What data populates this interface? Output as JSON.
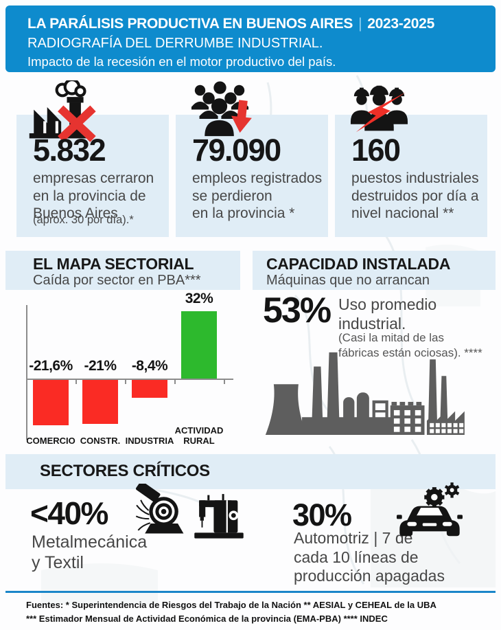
{
  "colors": {
    "header_blue": "#0e8bcd",
    "panel_blue": "#e0edf6",
    "accent_line_blue": "#1b86c9",
    "negative_red": "#fa2b24",
    "positive_green": "#2db92d",
    "icon_red": "#e63430",
    "silhouette_gray": "#5e5e5e",
    "text_dark": "#141414",
    "text_gray": "#474747"
  },
  "header": {
    "title": "LA PARÁLISIS PRODUCTIVA EN BUENOS AIRES",
    "separator": "|",
    "period": "2023-2025",
    "subtitle": "RADIOGRAFÍA DEL DERRUMBE INDUSTRIAL.",
    "tagline": "Impacto de la recesión en el motor productivo del país."
  },
  "stats": [
    {
      "icon": "closed-factory-icon",
      "value": "5.832",
      "description": "empresas cerraron\nen la provincia de\nBuenos Aires",
      "note": "(aprox. 30 por día).*"
    },
    {
      "icon": "jobs-lost-icon",
      "value": "79.090",
      "description": "empleos registrados\nse perdieron\nen la provincia *"
    },
    {
      "icon": "industrial-workers-icon",
      "value": "160",
      "description": "puestos industriales\ndestruidos por día a\nnivel nacional **"
    }
  ],
  "sector_map": {
    "title": "EL MAPA SECTORIAL",
    "subtitle": "Caída por sector en PBA***"
  },
  "chart_data": {
    "type": "bar",
    "title": "EL MAPA SECTORIAL",
    "subtitle": "Caída por sector en PBA***",
    "categories": [
      "COMERCIO",
      "CONSTR.",
      "INDUSTRIA",
      "ACTIVIDAD RURAL"
    ],
    "values": [
      -21.6,
      -21,
      -8.4,
      32
    ],
    "value_labels": [
      "-21,6%",
      "-21%",
      "-8,4%",
      "32%"
    ],
    "bar_colors": [
      "#fa2b24",
      "#fa2b24",
      "#fa2b24",
      "#2db92d"
    ],
    "xlabel": "",
    "ylabel": "",
    "ylim": [
      -25,
      35
    ],
    "grid": false,
    "baseline": 0,
    "legend": "none"
  },
  "capacity": {
    "title": "CAPACIDAD INSTALADA",
    "subtitle": "Máquinas que no arrancan",
    "value": "53%",
    "label": "Uso promedio\nindustrial.",
    "note": "(Casi la mitad de las\nfábricas están ociosas). ****"
  },
  "critical": {
    "title": "SECTORES CRÍTICOS",
    "items": [
      {
        "value": "<40%",
        "label": "Metalmecánica\ny Textil",
        "icons": [
          "metal-grinder-icon",
          "sewing-machine-icon"
        ]
      },
      {
        "value": "30%",
        "label": "Automotriz | 7 de\ncada 10 líneas de\nproducción apagadas",
        "icons": [
          "car-gears-icon"
        ]
      }
    ]
  },
  "footer": {
    "line1": "Fuentes: * Superintendencia de Riesgos del Trabajo de la Nación ** AESIAL y CEHEAL de la UBA",
    "line2": "*** Estimador Mensual de Actividad Económica de la provincia (EMA-PBA) **** INDEC"
  }
}
